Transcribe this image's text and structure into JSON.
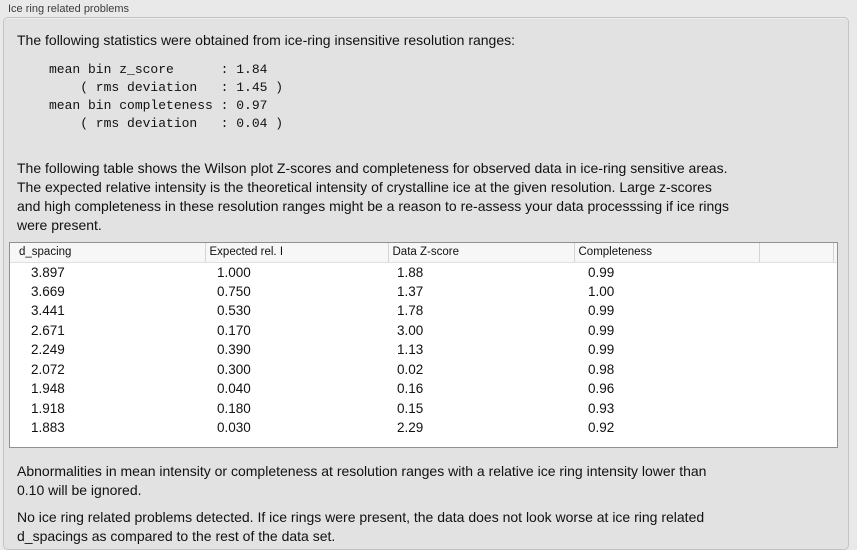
{
  "group": {
    "title": "Ice ring related problems",
    "intro": "The following statistics were obtained from ice-ring insensitive resolution ranges:",
    "stats_block": "mean bin z_score      : 1.84\n    ( rms deviation   : 1.45 )\nmean bin completeness : 0.97\n    ( rms deviation   : 0.04 )",
    "stats": {
      "mean_bin_z_score": "1.84",
      "z_score_rms_deviation": "1.45",
      "mean_bin_completeness": "0.97",
      "completeness_rms_deviation": "0.04"
    },
    "description": "The following table shows the Wilson plot Z-scores and completeness for observed data in ice-ring sensitive areas.\nThe expected relative intensity is the theoretical intensity of crystalline ice at the given resolution. Large z-scores\nand high completeness in these resolution ranges might be a reason to re-assess your data processsing if ice rings\nwere present.",
    "ignore_note": "Abnormalities in mean intensity or completeness at resolution ranges with a relative ice ring intensity lower than\n0.10 will be ignored.",
    "conclusion": "No ice ring related problems detected. If ice rings were present, the data does not look worse at ice ring related\nd_spacings as compared to the rest of the data set."
  },
  "table": {
    "columns": [
      "d_spacing",
      "Expected rel. I",
      "Data Z-score",
      "Completeness",
      ""
    ],
    "rows": [
      [
        "3.897",
        "1.000",
        "1.88",
        "0.99"
      ],
      [
        "3.669",
        "0.750",
        "1.37",
        "1.00"
      ],
      [
        "3.441",
        "0.530",
        "1.78",
        "0.99"
      ],
      [
        "2.671",
        "0.170",
        "3.00",
        "0.99"
      ],
      [
        "2.249",
        "0.390",
        "1.13",
        "0.99"
      ],
      [
        "2.072",
        "0.300",
        "0.02",
        "0.98"
      ],
      [
        "1.948",
        "0.040",
        "0.16",
        "0.96"
      ],
      [
        "1.918",
        "0.180",
        "0.15",
        "0.93"
      ],
      [
        "1.883",
        "0.030",
        "2.29",
        "0.92"
      ]
    ]
  },
  "colors": {
    "page_bg": "#e9e9e9",
    "box_bg": "#e2e2e2",
    "box_border": "#c3c3c3",
    "text": "#111111",
    "title_text": "#3c3c3c",
    "table_bg": "#ffffff",
    "table_border": "#919191",
    "header_bg": "#f7f7f7",
    "header_divider": "#d4d4d4"
  }
}
